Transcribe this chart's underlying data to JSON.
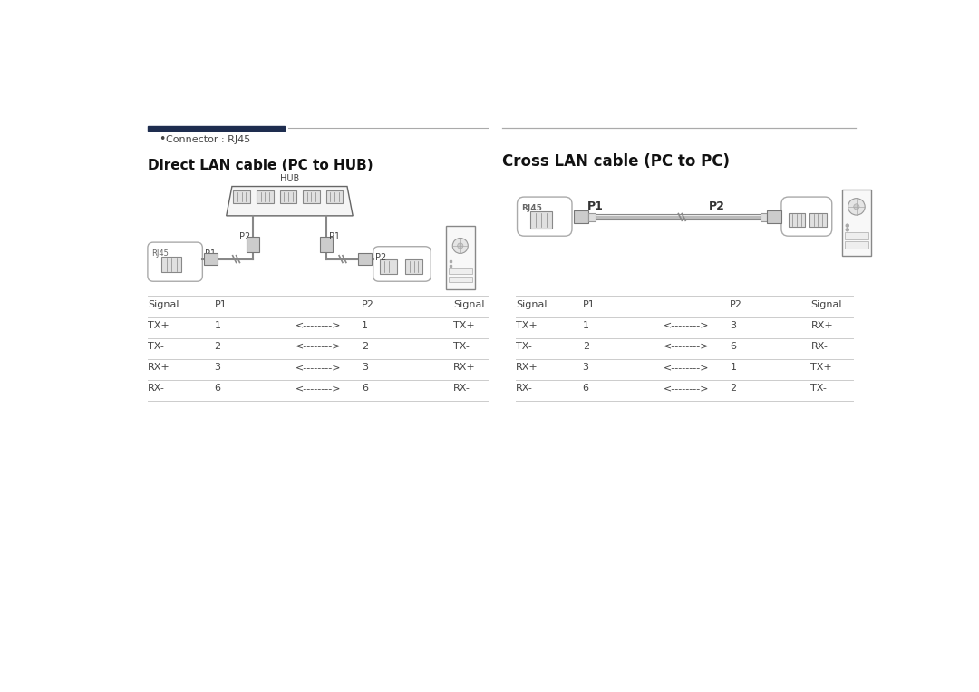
{
  "bg_color": "#ffffff",
  "title_bar_color1": "#1e2d4f",
  "connector_label": "Connector : RJ45",
  "left_title": "Direct LAN cable (PC to HUB)",
  "right_title": "Cross LAN cable (PC to PC)",
  "left_table_rows": [
    [
      "TX+",
      "1",
      "<-------->",
      "1",
      "TX+"
    ],
    [
      "TX-",
      "2",
      "<-------->",
      "2",
      "TX-"
    ],
    [
      "RX+",
      "3",
      "<-------->",
      "3",
      "RX+"
    ],
    [
      "RX-",
      "6",
      "<-------->",
      "6",
      "RX-"
    ]
  ],
  "right_table_rows": [
    [
      "TX+",
      "1",
      "<-------->",
      "3",
      "RX+"
    ],
    [
      "TX-",
      "2",
      "<-------->",
      "6",
      "RX-"
    ],
    [
      "RX+",
      "3",
      "<-------->",
      "1",
      "TX+"
    ],
    [
      "RX-",
      "6",
      "<-------->",
      "2",
      "TX-"
    ]
  ],
  "text_color": "#444444",
  "line_color": "#cccccc",
  "diagram_line": "#888888",
  "diagram_fill": "#f2f2f2",
  "diagram_dark": "#666666",
  "font_title": 11,
  "font_text": 8,
  "font_small": 7
}
